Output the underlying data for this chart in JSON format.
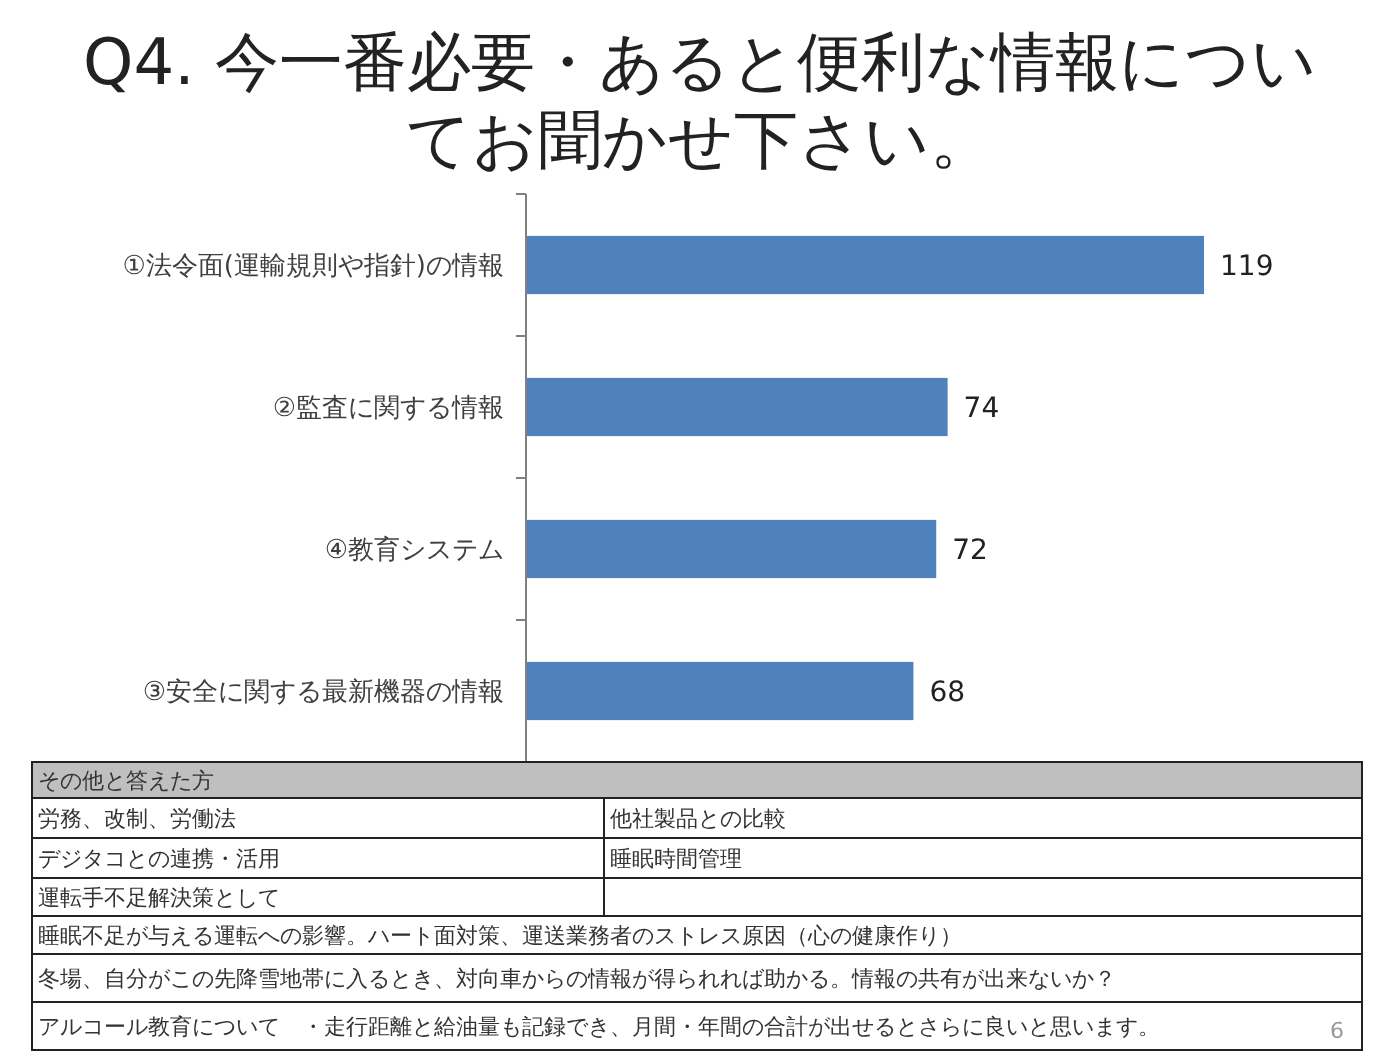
{
  "chart_data": {
    "type": "bar",
    "orientation": "horizontal",
    "title": "Q4. 今一番必要・あると便利な情報についてお聞かせ下さい。",
    "categories": [
      "①法令面(運輸規則や指針)の情報",
      "②監査に関する情報",
      "④教育システム",
      "③安全に関する最新機器の情報"
    ],
    "values": [
      119,
      74,
      72,
      68
    ],
    "color": "#4f81bd",
    "data_labels": true,
    "tick_labels": "y",
    "annotations": [
      "その他と答えた方",
      "労務、改制、労働法",
      "他社製品との比較",
      "デジタコとの連携・活用",
      "睡眠時間管理",
      "運転手不足解決策として",
      "睡眠不足が与える運転への影響。ハート面対策、運送業務者のストレス原因（心の健康作り）",
      "冬場、自分がこの先降雪地帯に入るとき、対向車からの情報が得られれば助かる。情報の共有が出来ないか？",
      "アルコール教育について　・走行距離と給油量も記録でき、月間・年間の合計が出せるとさらに良いと思います。",
      "6"
    ]
  }
}
